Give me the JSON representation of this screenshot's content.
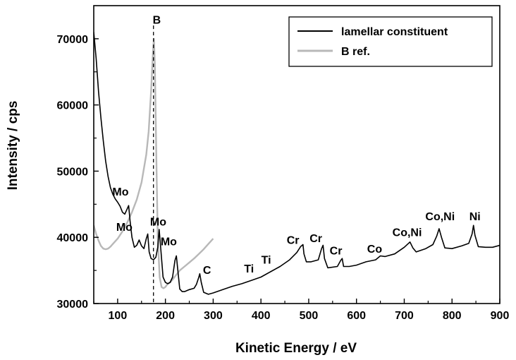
{
  "chart_data": {
    "type": "line",
    "xlabel": "Kinetic Energy / eV",
    "ylabel": "Intensity / cps",
    "xlim": [
      50,
      900
    ],
    "ylim": [
      30000,
      75000
    ],
    "x_ticks": [
      100,
      200,
      300,
      400,
      500,
      600,
      700,
      800,
      900
    ],
    "y_ticks": [
      30000,
      40000,
      50000,
      60000,
      70000
    ],
    "grid": false,
    "legend": {
      "position": "top-right",
      "entries": [
        {
          "label": "lamellar constituent",
          "color": "#000000"
        },
        {
          "label": "B ref.",
          "color": "#b8b8b8"
        }
      ]
    },
    "reference_line": {
      "x": 175,
      "label": "B",
      "style": "dashed"
    },
    "series": [
      {
        "name": "lamellar constituent",
        "color": "#000000",
        "points": [
          [
            50,
            71000
          ],
          [
            55,
            67000
          ],
          [
            60,
            62000
          ],
          [
            65,
            58000
          ],
          [
            70,
            54500
          ],
          [
            75,
            51500
          ],
          [
            80,
            49200
          ],
          [
            85,
            47500
          ],
          [
            90,
            46500
          ],
          [
            95,
            45800
          ],
          [
            100,
            45300
          ],
          [
            105,
            44700
          ],
          [
            110,
            43800
          ],
          [
            115,
            43500
          ],
          [
            120,
            44300
          ],
          [
            123,
            44800
          ],
          [
            126,
            42500
          ],
          [
            130,
            40000
          ],
          [
            135,
            38500
          ],
          [
            140,
            38800
          ],
          [
            145,
            39600
          ],
          [
            150,
            38700
          ],
          [
            155,
            38300
          ],
          [
            160,
            39800
          ],
          [
            163,
            40500
          ],
          [
            166,
            37800
          ],
          [
            170,
            36800
          ],
          [
            175,
            36600
          ],
          [
            180,
            37000
          ],
          [
            184,
            38500
          ],
          [
            187,
            41200
          ],
          [
            190,
            38500
          ],
          [
            195,
            34000
          ],
          [
            200,
            33200
          ],
          [
            205,
            33000
          ],
          [
            210,
            33200
          ],
          [
            215,
            34000
          ],
          [
            220,
            36500
          ],
          [
            223,
            37200
          ],
          [
            226,
            35000
          ],
          [
            230,
            32200
          ],
          [
            235,
            31800
          ],
          [
            240,
            31800
          ],
          [
            250,
            32100
          ],
          [
            260,
            32300
          ],
          [
            265,
            32900
          ],
          [
            270,
            34000
          ],
          [
            272,
            34500
          ],
          [
            275,
            33200
          ],
          [
            280,
            31700
          ],
          [
            290,
            31400
          ],
          [
            300,
            31600
          ],
          [
            320,
            32100
          ],
          [
            340,
            32600
          ],
          [
            360,
            33000
          ],
          [
            380,
            33500
          ],
          [
            400,
            34000
          ],
          [
            420,
            34800
          ],
          [
            440,
            35600
          ],
          [
            460,
            36600
          ],
          [
            475,
            37700
          ],
          [
            483,
            38600
          ],
          [
            488,
            38900
          ],
          [
            490,
            37500
          ],
          [
            495,
            36300
          ],
          [
            505,
            36300
          ],
          [
            520,
            36600
          ],
          [
            527,
            38300
          ],
          [
            530,
            38800
          ],
          [
            533,
            36800
          ],
          [
            540,
            35400
          ],
          [
            560,
            35600
          ],
          [
            567,
            36500
          ],
          [
            570,
            36800
          ],
          [
            573,
            35600
          ],
          [
            585,
            35600
          ],
          [
            600,
            35800
          ],
          [
            620,
            36300
          ],
          [
            640,
            36600
          ],
          [
            650,
            37200
          ],
          [
            660,
            37100
          ],
          [
            680,
            37500
          ],
          [
            700,
            38500
          ],
          [
            712,
            39300
          ],
          [
            718,
            38400
          ],
          [
            725,
            37800
          ],
          [
            745,
            38300
          ],
          [
            760,
            38900
          ],
          [
            768,
            40200
          ],
          [
            773,
            41300
          ],
          [
            778,
            40000
          ],
          [
            785,
            38400
          ],
          [
            800,
            38300
          ],
          [
            820,
            38700
          ],
          [
            835,
            39100
          ],
          [
            842,
            40500
          ],
          [
            845,
            41800
          ],
          [
            848,
            40300
          ],
          [
            855,
            38600
          ],
          [
            870,
            38500
          ],
          [
            885,
            38500
          ],
          [
            900,
            38800
          ]
        ]
      },
      {
        "name": "B ref.",
        "color": "#b8b8b8",
        "points": [
          [
            50,
            41800
          ],
          [
            55,
            40500
          ],
          [
            60,
            39500
          ],
          [
            65,
            38700
          ],
          [
            70,
            38300
          ],
          [
            75,
            38200
          ],
          [
            80,
            38300
          ],
          [
            85,
            38600
          ],
          [
            90,
            39000
          ],
          [
            100,
            39800
          ],
          [
            110,
            40900
          ],
          [
            120,
            42200
          ],
          [
            130,
            43800
          ],
          [
            140,
            45700
          ],
          [
            150,
            48300
          ],
          [
            160,
            52500
          ],
          [
            165,
            56000
          ],
          [
            170,
            62000
          ],
          [
            174,
            68000
          ],
          [
            176,
            70000
          ],
          [
            178,
            66000
          ],
          [
            181,
            52000
          ],
          [
            184,
            40000
          ],
          [
            188,
            34000
          ],
          [
            192,
            32500
          ],
          [
            196,
            32300
          ],
          [
            200,
            32500
          ],
          [
            205,
            33000
          ],
          [
            210,
            33200
          ],
          [
            215,
            33600
          ],
          [
            220,
            34100
          ],
          [
            230,
            35000
          ],
          [
            240,
            35600
          ],
          [
            250,
            36200
          ],
          [
            260,
            36800
          ],
          [
            270,
            37500
          ],
          [
            280,
            38200
          ],
          [
            290,
            39000
          ],
          [
            300,
            39800
          ]
        ]
      }
    ],
    "annotations": [
      {
        "text": "B",
        "x": 182,
        "y": 72300
      },
      {
        "text": "Mo",
        "x": 106,
        "y": 46300
      },
      {
        "text": "Mo",
        "x": 114,
        "y": 41000
      },
      {
        "text": "Mo",
        "x": 185,
        "y": 41800
      },
      {
        "text": "Mo",
        "x": 207,
        "y": 38800
      },
      {
        "text": "C",
        "x": 287,
        "y": 34500
      },
      {
        "text": "Ti",
        "x": 375,
        "y": 34700
      },
      {
        "text": "Ti",
        "x": 411,
        "y": 36000
      },
      {
        "text": "Cr",
        "x": 467,
        "y": 39000
      },
      {
        "text": "Cr",
        "x": 515,
        "y": 39300
      },
      {
        "text": "Cr",
        "x": 557,
        "y": 37400
      },
      {
        "text": "Co",
        "x": 638,
        "y": 37700
      },
      {
        "text": "Co,Ni",
        "x": 706,
        "y": 40200
      },
      {
        "text": "Co,Ni",
        "x": 775,
        "y": 42600
      },
      {
        "text": "Ni",
        "x": 848,
        "y": 42600
      }
    ]
  }
}
